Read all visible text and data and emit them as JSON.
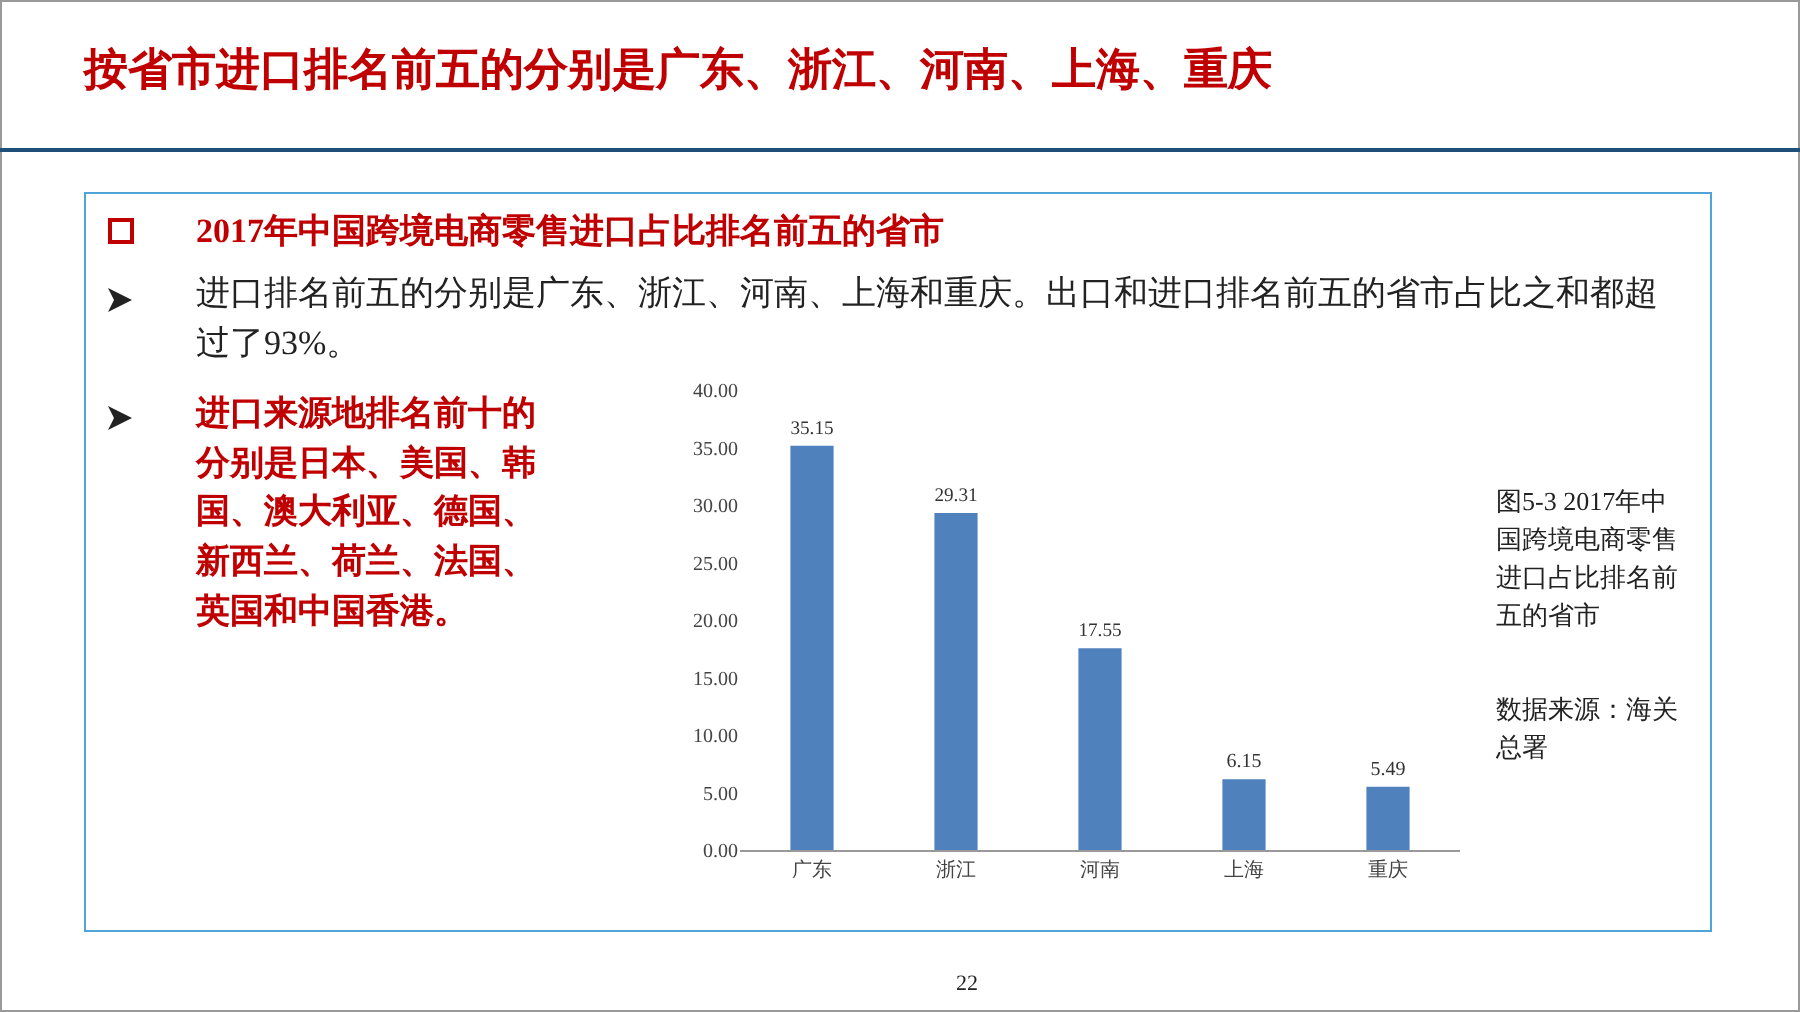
{
  "chart_data": {
    "type": "bar",
    "title": "按省市进口排名前五的分别是广东、浙江、河南、上海、重庆",
    "annotations": [
      "2017年中国跨境电商零售进口占比排名前五的省市",
      "进口排名前五的分别是广东、浙江、河南、上海和重庆。出口和进口排名前五的省市占比之和都超过了93%。",
      "进口来源地排名前十的分别是日本、美国、韩国、澳大利亚、德国、新西兰、荷兰、法国、英国和中国香港。",
      "图5-3 2017年中国跨境电商零售进口占比排名前五的省市",
      "数据来源：海关总署",
      "22"
    ],
    "categories": [
      "广东",
      "浙江",
      "河南",
      "上海",
      "重庆"
    ],
    "values": [
      35.15,
      29.31,
      17.55,
      6.15,
      5.49
    ],
    "color": "#4f81bd",
    "ylim": [
      0,
      40
    ],
    "yticks": [
      {
        "value": 0,
        "label": "0.00"
      },
      {
        "value": 5,
        "label": "5.00"
      },
      {
        "value": 10,
        "label": "10.00"
      },
      {
        "value": 15,
        "label": "15.00"
      },
      {
        "value": 20,
        "label": "20.00"
      },
      {
        "value": 25,
        "label": "25.00"
      },
      {
        "value": 30,
        "label": "30.00"
      },
      {
        "value": 35,
        "label": "35.00"
      },
      {
        "value": 40,
        "label": "40.00"
      }
    ],
    "grid": false,
    "data_labels": true
  }
}
